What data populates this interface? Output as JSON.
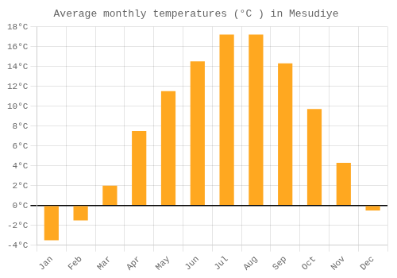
{
  "chart_data": {
    "type": "bar",
    "title": "Average monthly temperatures (°C ) in Mesudiye",
    "categories": [
      "Jan",
      "Feb",
      "Mar",
      "Apr",
      "May",
      "Jun",
      "Jul",
      "Aug",
      "Sep",
      "Oct",
      "Nov",
      "Dec"
    ],
    "values": [
      -3.5,
      -1.5,
      2.0,
      7.5,
      11.5,
      14.5,
      17.2,
      17.2,
      14.3,
      9.7,
      4.3,
      -0.5
    ],
    "color": "#FFA820",
    "ylim": [
      -4,
      18
    ],
    "yticks": [
      {
        "value": -4,
        "label": "-4°C"
      },
      {
        "value": -2,
        "label": "-2°C"
      },
      {
        "value": 0,
        "label": "0°C"
      },
      {
        "value": 2,
        "label": "2°C"
      },
      {
        "value": 4,
        "label": "4°C"
      },
      {
        "value": 6,
        "label": "6°C"
      },
      {
        "value": 8,
        "label": "8°C"
      },
      {
        "value": 10,
        "label": "10°C"
      },
      {
        "value": 12,
        "label": "12°C"
      },
      {
        "value": 14,
        "label": "14°C"
      },
      {
        "value": 16,
        "label": "16°C"
      },
      {
        "value": 18,
        "label": "18°C"
      }
    ],
    "grid": true
  }
}
